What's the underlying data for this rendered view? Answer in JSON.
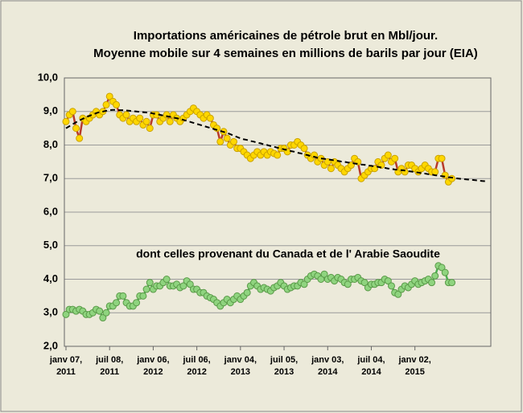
{
  "chart_data": {
    "type": "line",
    "title": "Importations américaines de pétrole brut en Mbl/jour.",
    "subtitle": "Moyenne mobile sur 4 semaines en millions de barils par jour (EIA)",
    "annotations": [
      "dont celles provenant du Canada et de l' Arabie Saoudite"
    ],
    "categories": [
      "janv 07,\n2011",
      null,
      null,
      null,
      null,
      null,
      null,
      null,
      null,
      null,
      null,
      null,
      null,
      "juil 08,\n2011",
      null,
      null,
      null,
      null,
      null,
      null,
      null,
      null,
      null,
      null,
      null,
      null,
      "janv 06,\n2012",
      null,
      null,
      null,
      null,
      null,
      null,
      null,
      null,
      null,
      null,
      null,
      null,
      "juil 06,\n2012",
      null,
      null,
      null,
      null,
      null,
      null,
      null,
      null,
      null,
      null,
      null,
      null,
      "janv 04,\n2013",
      null,
      null,
      null,
      null,
      null,
      null,
      null,
      null,
      null,
      null,
      null,
      null,
      "juil 05,\n2013",
      null,
      null,
      null,
      null,
      null,
      null,
      null,
      null,
      null,
      null,
      null,
      null,
      "janv 03,\n2014",
      null,
      null,
      null,
      null,
      null,
      null,
      null,
      null,
      null,
      null,
      null,
      null,
      "juil 04,\n2014",
      null,
      null,
      null,
      null,
      null,
      null,
      null,
      null,
      null,
      null,
      null,
      null,
      "janv 02,\n2015",
      null,
      null,
      null,
      null,
      null,
      null,
      null,
      null,
      null,
      null,
      null,
      null,
      null,
      null,
      null,
      null,
      null,
      null,
      null,
      null,
      null,
      null,
      null
    ],
    "series": [
      {
        "color": "#ffd700",
        "line_color": "#b83a2a",
        "marker_edge": "#c9a200",
        "markers": true,
        "values": [
          8.7,
          8.9,
          9.0,
          8.5,
          8.2,
          8.8,
          8.7,
          8.8,
          8.9,
          9.0,
          8.9,
          9.0,
          9.2,
          9.45,
          9.3,
          9.2,
          8.9,
          8.8,
          8.9,
          8.7,
          8.8,
          8.7,
          8.8,
          8.6,
          8.7,
          8.5,
          8.9,
          8.9,
          8.7,
          8.8,
          8.9,
          8.7,
          8.9,
          8.8,
          8.7,
          8.8,
          8.9,
          9.0,
          9.1,
          9.0,
          8.9,
          8.8,
          8.9,
          8.8,
          8.6,
          8.5,
          8.1,
          8.4,
          8.2,
          8.0,
          8.1,
          7.9,
          7.9,
          7.8,
          7.7,
          7.6,
          7.7,
          7.8,
          7.7,
          7.8,
          7.7,
          7.8,
          7.75,
          7.7,
          7.9,
          7.9,
          7.8,
          8.0,
          8.0,
          8.1,
          8.0,
          7.9,
          7.7,
          7.6,
          7.7,
          7.5,
          7.6,
          7.4,
          7.5,
          7.3,
          7.5,
          7.4,
          7.3,
          7.2,
          7.3,
          7.4,
          7.6,
          7.5,
          7.0,
          7.1,
          7.2,
          7.3,
          7.3,
          7.5,
          7.4,
          7.6,
          7.7,
          7.5,
          7.6,
          7.2,
          7.3,
          7.2,
          7.4,
          7.4,
          7.3,
          7.2,
          7.3,
          7.4,
          7.3,
          7.2,
          7.2,
          7.6,
          7.6,
          7.1,
          6.9,
          7.0,
          null,
          null,
          null,
          null,
          null,
          null,
          null,
          null,
          null,
          null,
          null,
          null
        ]
      },
      {
        "color": "#000000",
        "dashed": true,
        "markers": false,
        "values": [
          8.5,
          8.56,
          8.62,
          8.68,
          8.73,
          8.78,
          8.83,
          8.87,
          8.91,
          8.95,
          8.98,
          9.0,
          9.02,
          9.04,
          9.05,
          9.05,
          9.04,
          9.04,
          9.03,
          9.02,
          9.01,
          9.0,
          8.99,
          8.98,
          8.97,
          8.96,
          8.94,
          8.92,
          8.9,
          8.88,
          8.86,
          8.84,
          8.82,
          8.8,
          8.78,
          8.75,
          8.72,
          8.69,
          8.66,
          8.63,
          8.6,
          8.57,
          8.54,
          8.51,
          8.48,
          8.45,
          8.42,
          8.39,
          8.36,
          8.32,
          8.28,
          8.24,
          8.2,
          8.17,
          8.15,
          8.12,
          8.1,
          8.07,
          8.05,
          8.02,
          8.0,
          7.97,
          7.95,
          7.92,
          7.9,
          7.87,
          7.85,
          7.82,
          7.8,
          7.77,
          7.75,
          7.72,
          7.7,
          7.67,
          7.65,
          7.62,
          7.6,
          7.59,
          7.57,
          7.56,
          7.54,
          7.53,
          7.51,
          7.5,
          7.48,
          7.47,
          7.45,
          7.44,
          7.42,
          7.41,
          7.39,
          7.38,
          7.36,
          7.35,
          7.33,
          7.32,
          7.3,
          7.29,
          7.27,
          7.26,
          7.25,
          7.24,
          7.22,
          7.21,
          7.19,
          7.18,
          7.16,
          7.15,
          7.13,
          7.12,
          7.1,
          7.09,
          7.07,
          7.06,
          7.04,
          7.03,
          7.01,
          7.0,
          6.99,
          6.98,
          6.97,
          6.96,
          6.95,
          6.94,
          6.93,
          6.92,
          null,
          null
        ]
      },
      {
        "color": "#8fd47f",
        "line_color": "#4caf50",
        "marker_edge": "#5a9a48",
        "markers": true,
        "values": [
          2.95,
          3.1,
          3.1,
          3.05,
          3.1,
          3.05,
          2.95,
          2.95,
          3.0,
          3.1,
          3.05,
          2.85,
          3.0,
          3.2,
          3.2,
          3.3,
          3.5,
          3.5,
          3.3,
          3.2,
          3.2,
          3.3,
          3.5,
          3.5,
          3.7,
          3.9,
          3.7,
          3.8,
          3.8,
          3.9,
          4.0,
          3.8,
          3.8,
          3.85,
          3.75,
          3.8,
          3.95,
          3.85,
          3.7,
          3.7,
          3.6,
          3.6,
          3.5,
          3.45,
          3.4,
          3.3,
          3.2,
          3.3,
          3.4,
          3.3,
          3.4,
          3.5,
          3.4,
          3.5,
          3.6,
          3.8,
          3.9,
          3.8,
          3.7,
          3.75,
          3.7,
          3.65,
          3.75,
          3.8,
          3.9,
          3.8,
          3.7,
          3.75,
          3.8,
          3.8,
          3.9,
          3.85,
          4.0,
          4.1,
          4.15,
          4.1,
          4.0,
          4.15,
          4.0,
          4.05,
          3.95,
          4.05,
          4.0,
          3.9,
          3.85,
          4.0,
          4.0,
          4.05,
          3.95,
          3.9,
          3.75,
          3.85,
          3.85,
          3.9,
          3.9,
          4.0,
          3.95,
          3.8,
          3.6,
          3.55,
          3.7,
          3.8,
          3.75,
          3.85,
          3.95,
          3.85,
          3.9,
          3.95,
          4.0,
          3.9,
          4.1,
          4.4,
          4.35,
          4.2,
          3.9,
          3.9,
          null,
          null,
          null,
          null,
          null,
          null,
          null,
          null,
          null,
          null,
          null,
          null
        ]
      }
    ],
    "ylim": [
      2,
      10
    ],
    "yticks": [
      {
        "value": 2,
        "label": "2,0"
      },
      {
        "value": 3,
        "label": "3,0"
      },
      {
        "value": 4,
        "label": "4,0"
      },
      {
        "value": 5,
        "label": "5,0"
      },
      {
        "value": 6,
        "label": "6,0"
      },
      {
        "value": 7,
        "label": "7,0"
      },
      {
        "value": 8,
        "label": "8,0"
      },
      {
        "value": 9,
        "label": "9,0"
      },
      {
        "value": 10,
        "label": "10,0"
      }
    ],
    "grid": true
  }
}
